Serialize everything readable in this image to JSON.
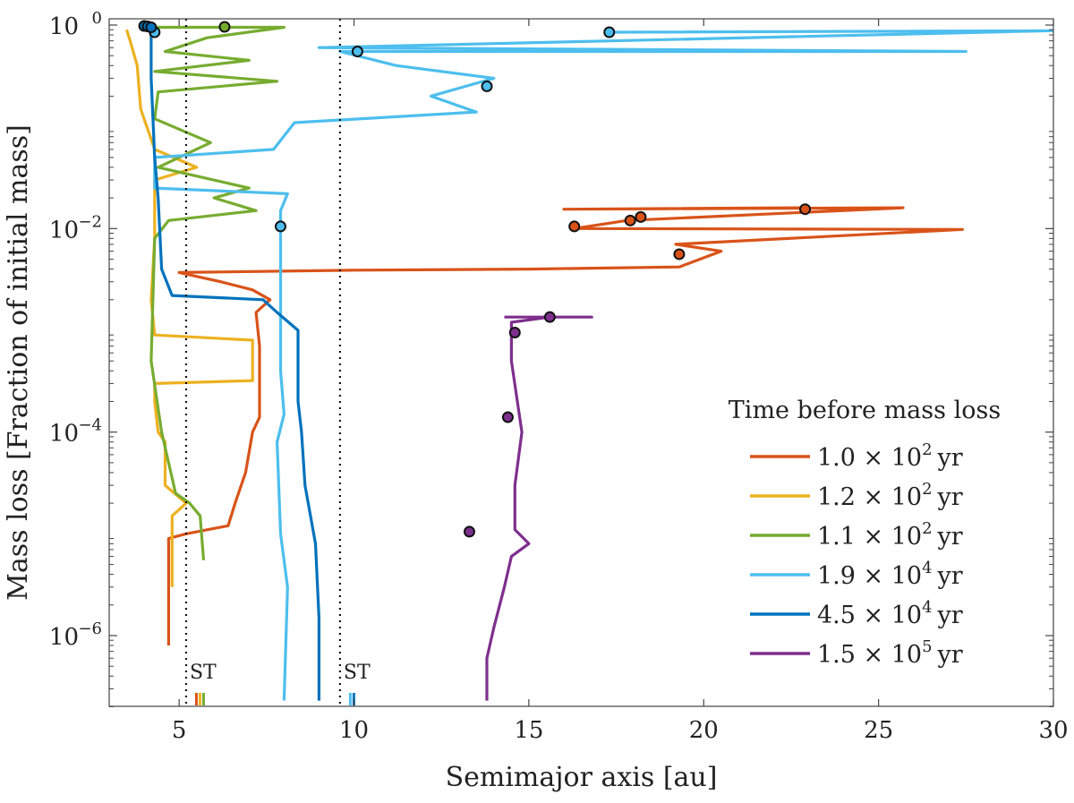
{
  "chart_data": {
    "type": "line",
    "xlabel": "Semimajor axis [au]",
    "ylabel": "Mass loss [Fraction of initial mass]",
    "xlim": [
      3,
      30
    ],
    "ylim": [
      2e-07,
      1
    ],
    "y_scale": "log",
    "x_ticks": [
      {
        "v": 5,
        "label": "5"
      },
      {
        "v": 10,
        "label": "10"
      },
      {
        "v": 15,
        "label": "15"
      },
      {
        "v": 20,
        "label": "20"
      },
      {
        "v": 25,
        "label": "25"
      },
      {
        "v": 30,
        "label": "30"
      }
    ],
    "y_ticks": [
      {
        "v": 1e-06,
        "base": "10",
        "exp": "−6"
      },
      {
        "v": 0.0001,
        "base": "10",
        "exp": "−4"
      },
      {
        "v": 0.01,
        "base": "10",
        "exp": "−2"
      },
      {
        "v": 1,
        "base": "10",
        "exp": "0"
      }
    ],
    "grid": false,
    "legend": {
      "title": "Time before mass loss",
      "placement": "bottom-right",
      "entries": [
        {
          "mantissa": "1.0",
          "exp": "2",
          "unit": "yr",
          "color": "#d95319"
        },
        {
          "mantissa": "1.2",
          "exp": "2",
          "unit": "yr",
          "color": "#edb120"
        },
        {
          "mantissa": "1.1",
          "exp": "2",
          "unit": "yr",
          "color": "#77ac30"
        },
        {
          "mantissa": "1.9",
          "exp": "4",
          "unit": "yr",
          "color": "#4dbeee"
        },
        {
          "mantissa": "4.5",
          "exp": "4",
          "unit": "yr",
          "color": "#0072bd"
        },
        {
          "mantissa": "1.5",
          "exp": "5",
          "unit": "yr",
          "color": "#7e2f8e"
        }
      ]
    },
    "reference_lines": [
      {
        "x": 5.2,
        "label": "ST",
        "style": "dotted"
      },
      {
        "x": 9.6,
        "label": "ST",
        "style": "dotted"
      }
    ],
    "series": [
      {
        "color": "#d95319",
        "points": [
          [
            4.7,
            8e-07
          ],
          [
            4.7,
            9e-06
          ],
          [
            5.2,
            1e-05
          ],
          [
            6.4,
            1.2e-05
          ],
          [
            6.6,
            2e-05
          ],
          [
            6.9,
            4e-05
          ],
          [
            7.1,
            0.0001
          ],
          [
            7.3,
            0.00014
          ],
          [
            7.3,
            0.0007
          ],
          [
            7.2,
            0.0015
          ],
          [
            7.6,
            0.002
          ],
          [
            7.1,
            0.0025
          ],
          [
            6.2,
            0.003
          ],
          [
            5.0,
            0.0037
          ],
          [
            10,
            0.0039
          ],
          [
            15,
            0.004
          ],
          [
            19.3,
            0.0042
          ],
          [
            20.5,
            0.006
          ],
          [
            19.2,
            0.007
          ],
          [
            27.4,
            0.0098
          ],
          [
            16.3,
            0.01
          ],
          [
            17.8,
            0.012
          ],
          [
            25.7,
            0.016
          ],
          [
            16.0,
            0.0155
          ],
          [
            22.8,
            0.016
          ]
        ],
        "markers": [
          [
            16.3,
            0.0105
          ],
          [
            17.9,
            0.012
          ],
          [
            18.2,
            0.013
          ],
          [
            22.9,
            0.0155
          ],
          [
            19.3,
            0.0056
          ]
        ]
      },
      {
        "color": "#edb120",
        "points": [
          [
            4.8,
            3e-06
          ],
          [
            4.8,
            1.5e-05
          ],
          [
            5.2,
            2e-05
          ],
          [
            4.6,
            3e-05
          ],
          [
            4.6,
            8e-05
          ],
          [
            4.4,
            0.0001
          ],
          [
            4.3,
            0.0002
          ],
          [
            4.3,
            0.0003
          ],
          [
            7.1,
            0.00032
          ],
          [
            7.1,
            0.0008
          ],
          [
            4.3,
            0.0009
          ],
          [
            4.2,
            0.002
          ],
          [
            4.3,
            0.008
          ],
          [
            4.3,
            0.03
          ],
          [
            5.5,
            0.04
          ],
          [
            4.3,
            0.06
          ],
          [
            3.9,
            0.15
          ],
          [
            3.8,
            0.4
          ],
          [
            3.6,
            0.7
          ],
          [
            3.5,
            0.9
          ]
        ],
        "markers": []
      },
      {
        "color": "#77ac30",
        "points": [
          [
            5.7,
            5.5e-06
          ],
          [
            5.6,
            1.5e-05
          ],
          [
            5.3,
            2e-05
          ],
          [
            4.9,
            2.5e-05
          ],
          [
            4.5,
            0.0001
          ],
          [
            4.2,
            0.0005
          ],
          [
            4.3,
            0.008
          ],
          [
            4.7,
            0.012
          ],
          [
            7.2,
            0.015
          ],
          [
            6.0,
            0.02
          ],
          [
            7.0,
            0.025
          ],
          [
            4.4,
            0.04
          ],
          [
            5.9,
            0.07
          ],
          [
            4.3,
            0.12
          ],
          [
            4.4,
            0.22
          ],
          [
            7.8,
            0.28
          ],
          [
            4.3,
            0.35
          ],
          [
            7.0,
            0.45
          ],
          [
            4.6,
            0.55
          ],
          [
            5.8,
            0.75
          ],
          [
            8.0,
            0.95
          ],
          [
            4.2,
            0.95
          ]
        ],
        "markers": [
          [
            6.3,
            0.96
          ]
        ]
      },
      {
        "color": "#4dbeee",
        "points": [
          [
            8.0,
            2.3e-07
          ],
          [
            8.1,
            3e-06
          ],
          [
            7.9,
            1e-05
          ],
          [
            7.8,
            8e-05
          ],
          [
            8.0,
            0.00015
          ],
          [
            7.9,
            0.0004
          ],
          [
            7.9,
            0.003
          ],
          [
            7.9,
            0.015
          ],
          [
            8.1,
            0.022
          ],
          [
            4.3,
            0.025
          ],
          [
            4.3,
            0.05
          ],
          [
            7.7,
            0.06
          ],
          [
            8.3,
            0.11
          ],
          [
            13.5,
            0.14
          ],
          [
            12.2,
            0.2
          ],
          [
            14.0,
            0.3
          ],
          [
            11.2,
            0.4
          ],
          [
            9.6,
            0.55
          ],
          [
            27.5,
            0.55
          ],
          [
            9.0,
            0.6
          ],
          [
            30,
            0.88
          ],
          [
            17.3,
            0.85
          ]
        ],
        "markers": [
          [
            7.9,
            0.0105
          ],
          [
            13.8,
            0.25
          ],
          [
            10.1,
            0.55
          ],
          [
            17.3,
            0.85
          ],
          [
            4.3,
            0.85
          ]
        ]
      },
      {
        "color": "#0072bd",
        "points": [
          [
            9.0,
            2.3e-07
          ],
          [
            9.0,
            1.5e-06
          ],
          [
            8.9,
            8e-06
          ],
          [
            8.6,
            3e-05
          ],
          [
            8.5,
            0.0001
          ],
          [
            8.4,
            0.0002
          ],
          [
            8.4,
            0.001
          ],
          [
            7.8,
            0.0015
          ],
          [
            7.4,
            0.002
          ],
          [
            4.8,
            0.0022
          ],
          [
            4.5,
            0.004
          ],
          [
            4.4,
            0.02
          ],
          [
            4.3,
            0.05
          ],
          [
            4.2,
            0.3
          ],
          [
            4.2,
            0.8
          ],
          [
            4.1,
            0.98
          ]
        ],
        "markers": [
          [
            4.0,
            0.98
          ],
          [
            4.1,
            0.97
          ],
          [
            4.2,
            0.95
          ]
        ]
      },
      {
        "color": "#7e2f8e",
        "points": [
          [
            13.8,
            2.3e-07
          ],
          [
            13.8,
            6e-07
          ],
          [
            14.0,
            1.2e-06
          ],
          [
            14.3,
            3e-06
          ],
          [
            14.5,
            6e-06
          ],
          [
            15.0,
            8e-06
          ],
          [
            14.6,
            1.1e-05
          ],
          [
            14.6,
            3e-05
          ],
          [
            14.8,
            0.0001
          ],
          [
            14.5,
            0.0005
          ],
          [
            14.5,
            0.0012
          ],
          [
            15.6,
            0.00135
          ],
          [
            16.8,
            0.00135
          ],
          [
            14.3,
            0.00135
          ]
        ],
        "markers": [
          [
            13.3,
            1.05e-05
          ],
          [
            14.4,
            0.00014
          ],
          [
            14.6,
            0.00095
          ],
          [
            15.6,
            0.00135
          ]
        ]
      }
    ]
  }
}
